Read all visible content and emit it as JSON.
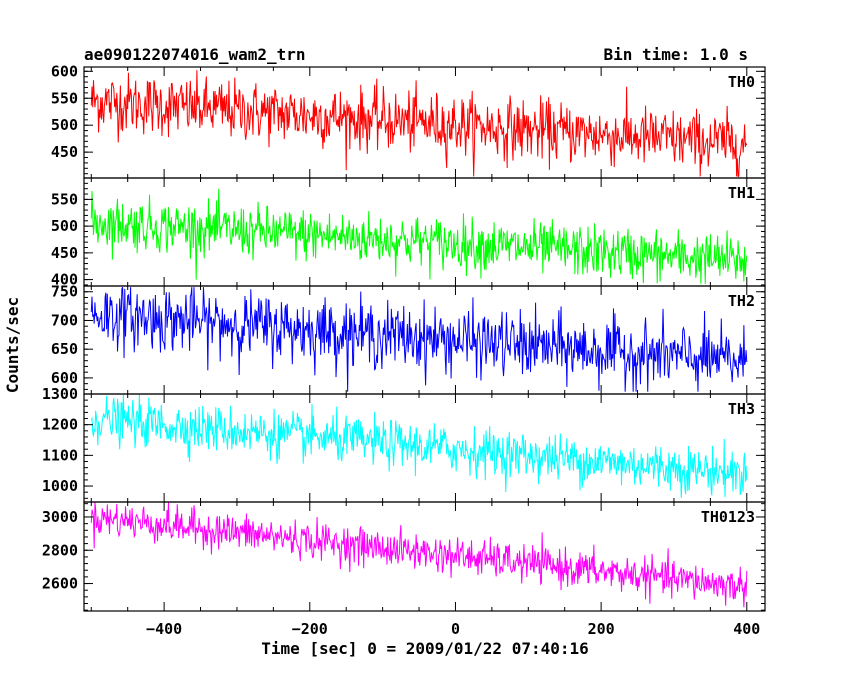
{
  "header": {
    "title": "ae090122074016_wam2_trn",
    "bin_time": "Bin time: 1.0 s"
  },
  "chart_data": {
    "type": "line",
    "xlabel": "Time [sec] 0 = 2009/01/22 07:40:16",
    "ylabel": "Counts/sec",
    "xlim": [
      -510,
      425
    ],
    "x_ticks": [
      -400,
      -200,
      0,
      200,
      400
    ],
    "x_tick_labels": [
      "−400",
      "−200",
      "0",
      "200",
      "400"
    ],
    "x_range": [
      -500,
      400
    ],
    "bin_time_s": 1.0,
    "panels": [
      {
        "name": "TH0",
        "color": "#ff0000",
        "ylim": [
          402,
          608
        ],
        "y_ticks": [
          450,
          500,
          550,
          600
        ],
        "y_tick_labels": [
          "450",
          "500",
          "550",
          "600"
        ],
        "trend_start": 545,
        "trend_end": 465,
        "noise": 28,
        "min": 405,
        "max": 605
      },
      {
        "name": "TH1",
        "color": "#00ff00",
        "ylim": [
          388,
          590
        ],
        "y_ticks": [
          400,
          450,
          500,
          550
        ],
        "y_tick_labels": [
          "400",
          "450",
          "500",
          "550"
        ],
        "trend_start": 508,
        "trend_end": 435,
        "noise": 24,
        "min": 392,
        "max": 594
      },
      {
        "name": "TH2",
        "color": "#0000ff",
        "ylim": [
          572,
          760
        ],
        "y_ticks": [
          600,
          650,
          700,
          750
        ],
        "y_tick_labels": [
          "600",
          "650",
          "700",
          "750"
        ],
        "trend_start": 712,
        "trend_end": 628,
        "noise": 28,
        "min": 576,
        "max": 758
      },
      {
        "name": "TH3",
        "color": "#00ffff",
        "ylim": [
          948,
          1300
        ],
        "y_ticks": [
          1000,
          1100,
          1200,
          1300
        ],
        "y_tick_labels": [
          "1000",
          "1100",
          "1200",
          "1300"
        ],
        "trend_start": 1220,
        "trend_end": 1040,
        "noise": 38,
        "min": 958,
        "max": 1300
      },
      {
        "name": "TH0123",
        "color": "#ff00ff",
        "ylim": [
          2435,
          3090
        ],
        "y_ticks": [
          2600,
          2800,
          3000
        ],
        "y_tick_labels": [
          "2600",
          "2800",
          "3000"
        ],
        "trend_start": 3000,
        "trend_end": 2580,
        "noise": 55,
        "min": 2450,
        "max": 3090
      }
    ]
  }
}
